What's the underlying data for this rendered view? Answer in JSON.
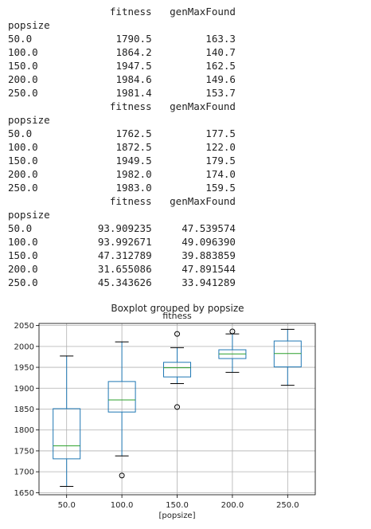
{
  "tables": [
    {
      "columns": [
        "fitness",
        "genMaxFound"
      ],
      "index_name": "popsize",
      "rows": [
        {
          "index": "50.0",
          "values": [
            "1790.5",
            "163.3"
          ]
        },
        {
          "index": "100.0",
          "values": [
            "1864.2",
            "140.7"
          ]
        },
        {
          "index": "150.0",
          "values": [
            "1947.5",
            "162.5"
          ]
        },
        {
          "index": "200.0",
          "values": [
            "1984.6",
            "149.6"
          ]
        },
        {
          "index": "250.0",
          "values": [
            "1981.4",
            "153.7"
          ]
        }
      ]
    },
    {
      "columns": [
        "fitness",
        "genMaxFound"
      ],
      "index_name": "popsize",
      "rows": [
        {
          "index": "50.0",
          "values": [
            "1762.5",
            "177.5"
          ]
        },
        {
          "index": "100.0",
          "values": [
            "1872.5",
            "122.0"
          ]
        },
        {
          "index": "150.0",
          "values": [
            "1949.5",
            "179.5"
          ]
        },
        {
          "index": "200.0",
          "values": [
            "1982.0",
            "174.0"
          ]
        },
        {
          "index": "250.0",
          "values": [
            "1983.0",
            "159.5"
          ]
        }
      ]
    },
    {
      "columns": [
        "fitness",
        "genMaxFound"
      ],
      "index_name": "popsize",
      "rows": [
        {
          "index": "50.0",
          "values": [
            "93.909235",
            "47.539574"
          ]
        },
        {
          "index": "100.0",
          "values": [
            "93.992671",
            "49.096390"
          ]
        },
        {
          "index": "150.0",
          "values": [
            "47.312789",
            "39.883859"
          ]
        },
        {
          "index": "200.0",
          "values": [
            "31.655086",
            "47.891544"
          ]
        },
        {
          "index": "250.0",
          "values": [
            "45.343626",
            "33.941289"
          ]
        }
      ]
    }
  ],
  "chart_data": {
    "type": "box",
    "suptitle": "Boxplot grouped by popsize",
    "title": "fitness",
    "xlabel": "[popsize]",
    "categories": [
      "50.0",
      "100.0",
      "150.0",
      "200.0",
      "250.0"
    ],
    "ylim": [
      1645,
      2055
    ],
    "yticks": [
      1650,
      1700,
      1750,
      1800,
      1850,
      1900,
      1950,
      2000,
      2050
    ],
    "grid": true,
    "boxes": [
      {
        "category": "50.0",
        "whisker_low": 1665,
        "q1": 1731,
        "median": 1762,
        "q3": 1851,
        "whisker_high": 1977,
        "outliers": []
      },
      {
        "category": "100.0",
        "whisker_low": 1738,
        "q1": 1843,
        "median": 1872,
        "q3": 1916,
        "whisker_high": 2011,
        "outliers": [
          1691
        ]
      },
      {
        "category": "150.0",
        "whisker_low": 1911,
        "q1": 1927,
        "median": 1949,
        "q3": 1962,
        "whisker_high": 1997,
        "outliers": [
          2030,
          1855
        ]
      },
      {
        "category": "200.0",
        "whisker_low": 1938,
        "q1": 1971,
        "median": 1982,
        "q3": 1992,
        "whisker_high": 2030,
        "outliers": [
          2036
        ]
      },
      {
        "category": "250.0",
        "whisker_low": 1907,
        "q1": 1951,
        "median": 1983,
        "q3": 2013,
        "whisker_high": 2041,
        "outliers": []
      }
    ],
    "colors": {
      "box": "#1f77b4",
      "median": "#2ca02c",
      "whisker": "#1f77b4",
      "cap": "#000000",
      "flier": "#000000",
      "grid": "#b0b0b0"
    }
  }
}
